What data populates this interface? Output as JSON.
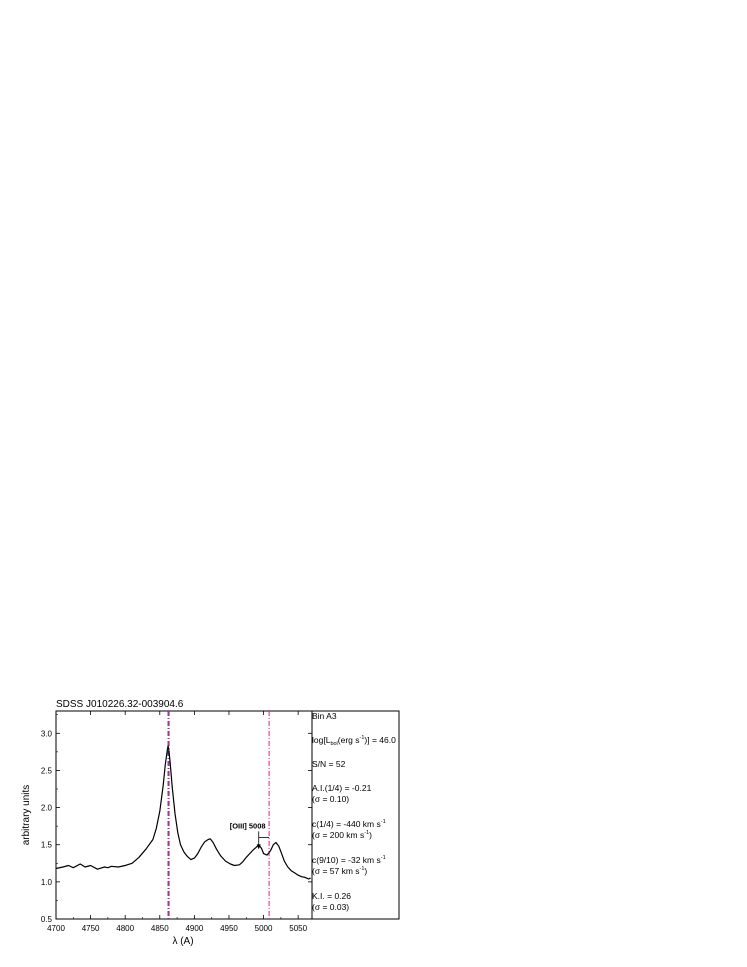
{
  "title": "SDSS J010226.32-003904.6",
  "chart_data": {
    "type": "line",
    "title": "SDSS J010226.32-003904.6",
    "xlabel": "λ (A)",
    "ylabel": "arbitrary units",
    "xlim": [
      4700,
      5070
    ],
    "ylim": [
      0.5,
      3.3
    ],
    "xticks": [
      4700,
      4750,
      4800,
      4850,
      4900,
      4950,
      5000,
      5050
    ],
    "xtick_labels": [
      "4700",
      "4750",
      "4800",
      "4850",
      "4900",
      "4950",
      "5000",
      "5050"
    ],
    "yticks": [
      0.5,
      1.0,
      1.5,
      2.0,
      2.5,
      3.0
    ],
    "ytick_labels": [
      "0.5",
      "1.0",
      "1.5",
      "2.0",
      "2.5",
      "3.0"
    ],
    "grid": false,
    "series": [
      {
        "color": "#000000",
        "x": [
          4700,
          4710,
          4718,
          4725,
          4735,
          4742,
          4750,
          4760,
          4770,
          4775,
          4780,
          4790,
          4800,
          4810,
          4820,
          4830,
          4840,
          4845,
          4850,
          4855,
          4858,
          4861,
          4862,
          4863,
          4865,
          4868,
          4872,
          4876,
          4880,
          4885,
          4890,
          4895,
          4900,
          4905,
          4910,
          4915,
          4920,
          4923,
          4927,
          4932,
          4938,
          4945,
          4952,
          4958,
          4965,
          4970,
          4975,
          4980,
          4985,
          4990,
          4993,
          4997,
          5000,
          5005,
          5010,
          5014,
          5018,
          5022,
          5026,
          5030,
          5035,
          5040,
          5045,
          5050,
          5055,
          5060,
          5065,
          5068
        ],
        "y": [
          1.18,
          1.2,
          1.22,
          1.19,
          1.24,
          1.2,
          1.22,
          1.17,
          1.2,
          1.19,
          1.21,
          1.2,
          1.22,
          1.25,
          1.33,
          1.44,
          1.57,
          1.72,
          1.95,
          2.3,
          2.58,
          2.78,
          2.83,
          2.78,
          2.6,
          2.28,
          1.92,
          1.66,
          1.5,
          1.4,
          1.34,
          1.3,
          1.32,
          1.38,
          1.47,
          1.54,
          1.57,
          1.58,
          1.53,
          1.44,
          1.35,
          1.28,
          1.24,
          1.22,
          1.23,
          1.27,
          1.33,
          1.38,
          1.43,
          1.47,
          1.5,
          1.45,
          1.38,
          1.36,
          1.42,
          1.5,
          1.53,
          1.48,
          1.38,
          1.28,
          1.2,
          1.15,
          1.12,
          1.09,
          1.07,
          1.06,
          1.04,
          1.05
        ]
      }
    ],
    "vlines": [
      {
        "x": 4862,
        "color": "#3b2f9b",
        "style": "dash-dot"
      },
      {
        "x": 4863.5,
        "color": "#e0218a",
        "style": "dash-dot"
      },
      {
        "x": 5008,
        "color": "#e0218a",
        "style": "dash-dot"
      }
    ],
    "annotations": [
      {
        "text": "[OIII] 5008",
        "x": 4993,
        "y": 1.72
      }
    ]
  },
  "info": {
    "bin": "Bin A3",
    "lbol_prefix": "log[L",
    "lbol_sub": "bol",
    "lbol_mid": "(erg s",
    "lbol_sup": "-1",
    "lbol_suffix": ")] = 46.0",
    "sn": "S/N = 52",
    "ai": "A.I.(1/4) = -0.21",
    "ai_sigma": "(σ = 0.10)",
    "c14_main": "c(1/4) = -440 km s",
    "c14_sup": "-1",
    "c14_sigma_main": "(σ = 200 km s",
    "c14_sigma_sup": "-1",
    "c14_sigma_close": ")",
    "c910_main": "c(9/10) = -32 km s",
    "c910_sup": "-1",
    "c910_sigma_main": "(σ = 57 km s",
    "c910_sigma_sup": "-1",
    "c910_sigma_close": ")",
    "ki": "K.I. = 0.26",
    "ki_sigma": "(σ = 0.03)"
  }
}
